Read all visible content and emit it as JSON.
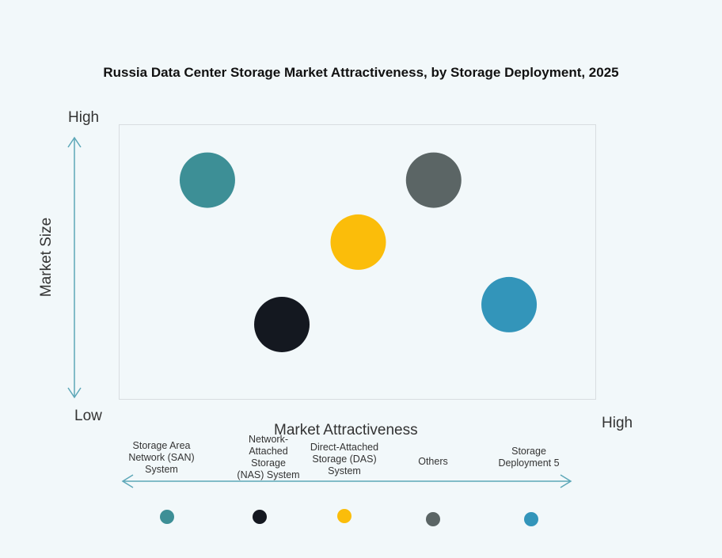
{
  "chart_data": {
    "type": "scatter",
    "title": "Russia Data Center Storage Market Attractiveness,  by Storage Deployment, 2025",
    "xlabel": "Market Attractiveness",
    "ylabel": "Market Size",
    "x_low_label": "Low",
    "x_high_label": "High",
    "y_high_label": "High",
    "xlim": [
      0,
      10
    ],
    "ylim": [
      0,
      10
    ],
    "grid": false,
    "legend_placement": "bottom",
    "series": [
      {
        "name": "Storage Area Network (SAN) System",
        "x": 1.84,
        "y": 8.0,
        "color": "#3d8f96"
      },
      {
        "name": "Network-Attached Storage (NAS) System",
        "x": 3.4,
        "y": 2.76,
        "color": "#141820"
      },
      {
        "name": "Direct-Attached Storage (DAS) System",
        "x": 5.0,
        "y": 5.75,
        "color": "#fbbd0a"
      },
      {
        "name": "Others",
        "x": 6.58,
        "y": 8.0,
        "color": "#5b6565"
      },
      {
        "name": "Storage Deployment 5",
        "x": 8.16,
        "y": 3.48,
        "color": "#3395ba"
      }
    ],
    "legend_labels": [
      "Storage Area Network (SAN) System",
      "Network-Attached Storage (NAS) System",
      "Direct-Attached Storage (DAS) System",
      "Others",
      "Storage Deployment 5"
    ]
  }
}
